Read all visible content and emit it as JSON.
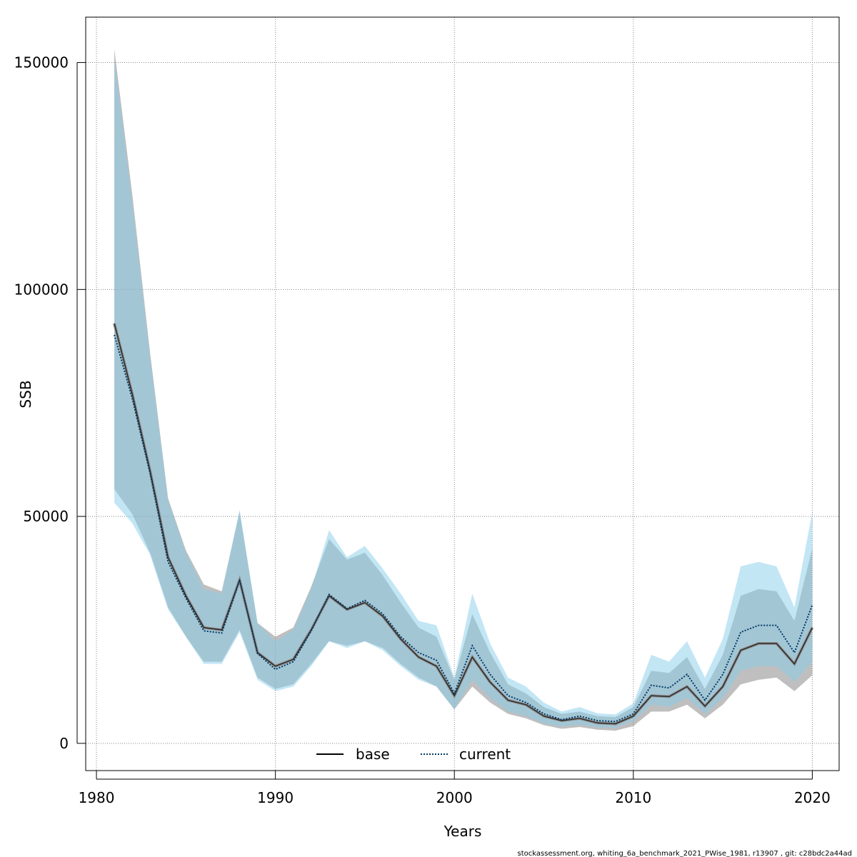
{
  "chart_data": {
    "type": "area",
    "xlabel": "Years",
    "ylabel": "SSB",
    "xlim": [
      1979.4,
      2021.5
    ],
    "ylim": [
      -6000,
      160000
    ],
    "xticks": [
      1980,
      1990,
      2000,
      2010,
      2020
    ],
    "yticks": [
      0,
      50000,
      100000,
      150000
    ],
    "grid": true,
    "legend_position": "bottom-center",
    "years": [
      1981,
      1982,
      1983,
      1984,
      1985,
      1986,
      1987,
      1988,
      1989,
      1990,
      1991,
      1992,
      1993,
      1994,
      1995,
      1996,
      1997,
      1998,
      1999,
      2000,
      2001,
      2002,
      2003,
      2004,
      2005,
      2006,
      2007,
      2008,
      2009,
      2010,
      2011,
      2012,
      2013,
      2014,
      2015,
      2016,
      2017,
      2018,
      2019,
      2020
    ],
    "series": [
      {
        "name": "base",
        "line": "solid",
        "color": "#000000",
        "band_color": "#808080",
        "values": [
          92500,
          77000,
          60000,
          41000,
          32500,
          25500,
          25000,
          36000,
          20000,
          17000,
          18500,
          25000,
          32500,
          29500,
          31000,
          28000,
          23000,
          19000,
          17000,
          10500,
          19000,
          13500,
          9500,
          8500,
          6000,
          5000,
          5500,
          4500,
          4300,
          6000,
          10500,
          10300,
          12500,
          8200,
          12500,
          20500,
          22000,
          22000,
          17500,
          25500
        ],
        "lower": [
          56000,
          50500,
          42000,
          30000,
          23500,
          18000,
          18000,
          25000,
          14500,
          12000,
          13000,
          17500,
          22500,
          21500,
          22500,
          21000,
          17500,
          14500,
          12500,
          7500,
          12500,
          9000,
          6500,
          5500,
          4000,
          3200,
          3600,
          3000,
          2800,
          3800,
          7000,
          7000,
          8500,
          5500,
          8500,
          13000,
          14000,
          14500,
          11500,
          15000
        ],
        "upper": [
          153000,
          121000,
          86000,
          54000,
          42500,
          35000,
          33500,
          51000,
          26500,
          23500,
          25500,
          34500,
          45000,
          40500,
          42000,
          37000,
          31000,
          25500,
          23500,
          14000,
          28500,
          20000,
          13000,
          11000,
          8000,
          6500,
          7000,
          6000,
          5800,
          8000,
          16000,
          15500,
          19000,
          12000,
          19500,
          32500,
          34000,
          33500,
          27000,
          43000
        ]
      },
      {
        "name": "current",
        "line": "dotted",
        "color": "#006aa0",
        "band_color": "#87ceeb",
        "values": [
          90000,
          76000,
          59500,
          40000,
          32000,
          24800,
          24300,
          36000,
          19800,
          16300,
          18000,
          24800,
          32800,
          29700,
          31500,
          28500,
          23500,
          20000,
          18300,
          11000,
          21500,
          15200,
          10500,
          9000,
          6500,
          5200,
          6000,
          5000,
          4800,
          6500,
          12800,
          12200,
          15200,
          9500,
          15200,
          24500,
          26000,
          26000,
          20000,
          30500
        ],
        "lower": [
          53000,
          48500,
          41500,
          29500,
          23500,
          17500,
          17500,
          24500,
          14000,
          11500,
          12500,
          17000,
          22500,
          21000,
          22500,
          20500,
          17000,
          14000,
          12500,
          7500,
          14000,
          10000,
          7000,
          6000,
          4300,
          3700,
          4100,
          3500,
          3400,
          4900,
          8500,
          8000,
          10000,
          6500,
          10000,
          16000,
          17000,
          17000,
          13500,
          18000
        ],
        "upper": [
          151000,
          119000,
          85000,
          53500,
          42000,
          34000,
          33000,
          51500,
          26500,
          22500,
          25000,
          34000,
          47000,
          41000,
          43500,
          38500,
          33000,
          27000,
          26000,
          14500,
          33000,
          22000,
          14500,
          12500,
          9000,
          7000,
          8000,
          6600,
          6400,
          8800,
          19500,
          18000,
          22500,
          14500,
          23000,
          39000,
          40000,
          39000,
          30000,
          51000
        ]
      }
    ]
  },
  "footer": "stockassessment.org, whiting_6a_benchmark_2021_PWise_1981, r13907 , git: c28bdc2a44ad",
  "colors": {
    "base_band": "#808080",
    "current_band": "#87ceeb",
    "overlap": "#a6c3d2"
  }
}
